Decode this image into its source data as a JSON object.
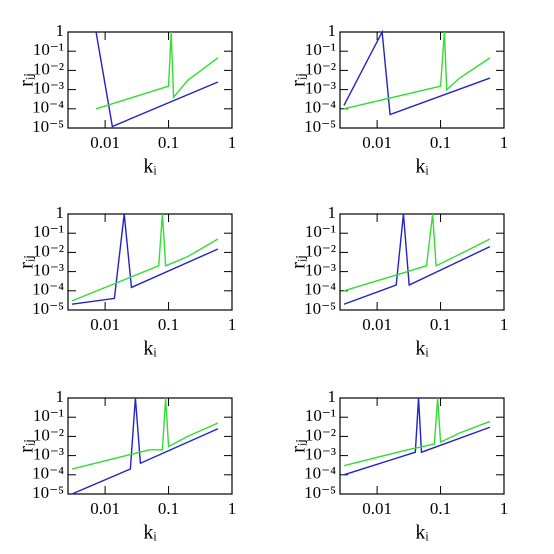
{
  "chart_data": [
    {
      "type": "line",
      "xlabel": "kᵢ",
      "ylabel": "rᵢⱼ",
      "log_x": true,
      "log_y": true,
      "xlim": [
        0.0026,
        1
      ],
      "ylim": [
        1e-05,
        1
      ],
      "xticks": [
        0.01,
        0.1,
        1
      ],
      "yticks": [
        1,
        {
          "value": 0.1,
          "label": "10⁻¹"
        },
        {
          "value": 0.01,
          "label": "10⁻²"
        },
        {
          "value": 0.001,
          "label": "10⁻³"
        },
        {
          "value": 0.0001,
          "label": "10⁻⁴"
        },
        {
          "value": 1e-05,
          "label": "10⁻⁵"
        }
      ],
      "series": [
        {
          "color": "#2222cc",
          "x": [
            0.0072,
            0.013,
            0.6
          ],
          "values": [
            1,
            1.2e-05,
            0.0025
          ]
        },
        {
          "color": "#33dd33",
          "x": [
            0.0072,
            0.1,
            0.11,
            0.12,
            0.2,
            0.6
          ],
          "values": [
            0.0001,
            0.0015,
            1,
            0.0004,
            0.003,
            0.045
          ]
        }
      ]
    },
    {
      "type": "line",
      "xlabel": "kᵢ",
      "ylabel": "rᵢⱼ",
      "log_x": true,
      "log_y": true,
      "xlim": [
        0.0026,
        1
      ],
      "ylim": [
        1e-05,
        1
      ],
      "xticks": [
        0.01,
        0.1,
        1
      ],
      "yticks": [
        1,
        {
          "value": 0.1,
          "label": "10⁻¹"
        },
        {
          "value": 0.01,
          "label": "10⁻²"
        },
        {
          "value": 0.001,
          "label": "10⁻³"
        },
        {
          "value": 0.0001,
          "label": "10⁻⁴"
        },
        {
          "value": 1e-05,
          "label": "10⁻⁵"
        }
      ],
      "series": [
        {
          "color": "#2222cc",
          "x": [
            0.003,
            0.012,
            0.016,
            0.6
          ],
          "values": [
            0.00015,
            1,
            5e-05,
            0.004
          ]
        },
        {
          "color": "#33dd33",
          "x": [
            0.003,
            0.1,
            0.115,
            0.125,
            0.2,
            0.6
          ],
          "values": [
            0.0001,
            0.0015,
            1,
            0.001,
            0.004,
            0.045
          ]
        }
      ]
    },
    {
      "type": "line",
      "xlabel": "kᵢ",
      "ylabel": "rᵢⱼ",
      "log_x": true,
      "log_y": true,
      "xlim": [
        0.0026,
        1
      ],
      "ylim": [
        1e-05,
        1
      ],
      "xticks": [
        0.01,
        0.1,
        1
      ],
      "yticks": [
        1,
        {
          "value": 0.1,
          "label": "10⁻¹"
        },
        {
          "value": 0.01,
          "label": "10⁻²"
        },
        {
          "value": 0.001,
          "label": "10⁻³"
        },
        {
          "value": 0.0001,
          "label": "10⁻⁴"
        },
        {
          "value": 1e-05,
          "label": "10⁻⁵"
        }
      ],
      "series": [
        {
          "color": "#2222cc",
          "x": [
            0.003,
            0.014,
            0.02,
            0.026,
            0.6
          ],
          "values": [
            2e-05,
            4e-05,
            1,
            0.00015,
            0.015
          ]
        },
        {
          "color": "#33dd33",
          "x": [
            0.003,
            0.07,
            0.08,
            0.09,
            0.2,
            0.6
          ],
          "values": [
            3e-05,
            0.002,
            1,
            0.002,
            0.006,
            0.05
          ]
        }
      ]
    },
    {
      "type": "line",
      "xlabel": "kᵢ",
      "ylabel": "rᵢⱼ",
      "log_x": true,
      "log_y": true,
      "xlim": [
        0.0026,
        1
      ],
      "ylim": [
        1e-05,
        1
      ],
      "xticks": [
        0.01,
        0.1,
        1
      ],
      "yticks": [
        1,
        {
          "value": 0.1,
          "label": "10⁻¹"
        },
        {
          "value": 0.01,
          "label": "10⁻²"
        },
        {
          "value": 0.001,
          "label": "10⁻³"
        },
        {
          "value": 0.0001,
          "label": "10⁻⁴"
        },
        {
          "value": 1e-05,
          "label": "10⁻⁵"
        }
      ],
      "series": [
        {
          "color": "#2222cc",
          "x": [
            0.003,
            0.02,
            0.026,
            0.032,
            0.6
          ],
          "values": [
            2e-05,
            0.0002,
            1,
            0.0002,
            0.02
          ]
        },
        {
          "color": "#33dd33",
          "x": [
            0.003,
            0.06,
            0.075,
            0.085,
            0.2,
            0.6
          ],
          "values": [
            0.0001,
            0.002,
            1,
            0.002,
            0.008,
            0.05
          ]
        }
      ]
    },
    {
      "type": "line",
      "xlabel": "kᵢ",
      "ylabel": "rᵢⱼ",
      "log_x": true,
      "log_y": true,
      "xlim": [
        0.0026,
        1
      ],
      "ylim": [
        1e-05,
        1
      ],
      "xticks": [
        0.01,
        0.1,
        1
      ],
      "yticks": [
        1,
        {
          "value": 0.1,
          "label": "10⁻¹"
        },
        {
          "value": 0.01,
          "label": "10⁻²"
        },
        {
          "value": 0.001,
          "label": "10⁻³"
        },
        {
          "value": 0.0001,
          "label": "10⁻⁴"
        },
        {
          "value": 1e-05,
          "label": "10⁻⁵"
        }
      ],
      "series": [
        {
          "color": "#2222cc",
          "x": [
            0.003,
            0.025,
            0.03,
            0.036,
            0.6
          ],
          "values": [
            1e-05,
            0.0002,
            1,
            0.0004,
            0.025
          ]
        },
        {
          "color": "#33dd33",
          "x": [
            0.003,
            0.05,
            0.08,
            0.09,
            0.1,
            0.2,
            0.6
          ],
          "values": [
            0.0002,
            0.002,
            0.002,
            1,
            0.003,
            0.01,
            0.05
          ]
        }
      ]
    },
    {
      "type": "line",
      "xlabel": "kᵢ",
      "ylabel": "rᵢⱼ",
      "log_x": true,
      "log_y": true,
      "xlim": [
        0.0026,
        1
      ],
      "ylim": [
        1e-05,
        1
      ],
      "xticks": [
        0.01,
        0.1,
        1
      ],
      "yticks": [
        1,
        {
          "value": 0.1,
          "label": "10⁻¹"
        },
        {
          "value": 0.01,
          "label": "10⁻²"
        },
        {
          "value": 0.001,
          "label": "10⁻³"
        },
        {
          "value": 0.0001,
          "label": "10⁻⁴"
        },
        {
          "value": 1e-05,
          "label": "10⁻⁵"
        }
      ],
      "series": [
        {
          "color": "#2222cc",
          "x": [
            0.003,
            0.04,
            0.045,
            0.05,
            0.6
          ],
          "values": [
            0.0001,
            0.0015,
            1,
            0.0015,
            0.03
          ]
        },
        {
          "color": "#33dd33",
          "x": [
            0.003,
            0.03,
            0.08,
            0.09,
            0.1,
            0.2,
            0.6
          ],
          "values": [
            0.0003,
            0.002,
            0.004,
            1,
            0.005,
            0.015,
            0.06
          ]
        }
      ]
    }
  ]
}
